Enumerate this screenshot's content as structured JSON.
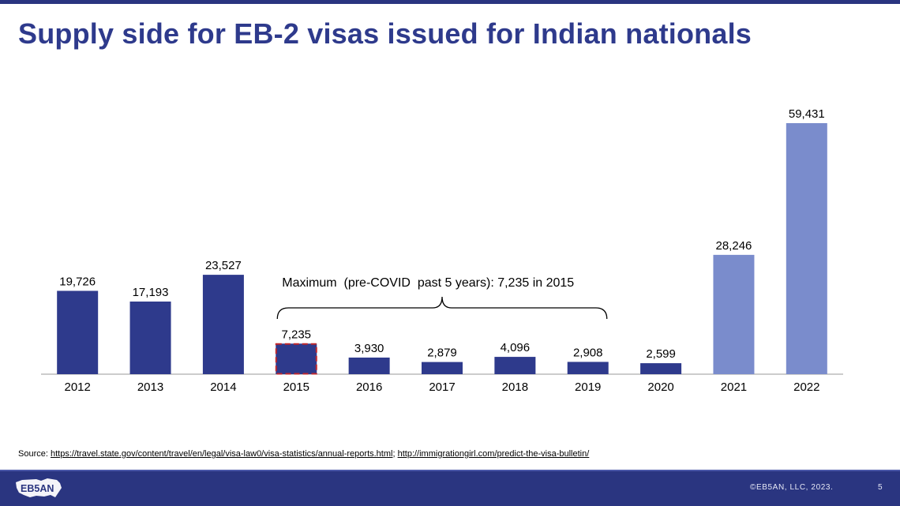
{
  "title": "Supply side for EB-2 visas issued for Indian nationals",
  "chart_data": {
    "type": "bar",
    "title": "Supply side for EB-2 visas issued for Indian nationals",
    "categories": [
      "2012",
      "2013",
      "2014",
      "2015",
      "2016",
      "2017",
      "2018",
      "2019",
      "2020",
      "2021",
      "2022"
    ],
    "values": [
      19726,
      17193,
      23527,
      7235,
      3930,
      2879,
      4096,
      2908,
      2599,
      28246,
      59431
    ],
    "value_labels": [
      "19,726",
      "17,193",
      "23,527",
      "7,235",
      "3,930",
      "2,879",
      "4,096",
      "2,908",
      "2,599",
      "28,246",
      "59,431"
    ],
    "bar_colors": [
      "#2e3a8c",
      "#2e3a8c",
      "#2e3a8c",
      "#2e3a8c",
      "#2e3a8c",
      "#2e3a8c",
      "#2e3a8c",
      "#2e3a8c",
      "#2e3a8c",
      "#7a8ccc",
      "#7a8ccc"
    ],
    "highlight_category": "2015",
    "highlight_color": "#c0282d",
    "ylim": [
      0,
      59431
    ],
    "xlabel": "",
    "ylabel": "",
    "grid": false,
    "annotation": {
      "text": "Maximum  (pre-COVID  past 5 years): 7,235 in 2015",
      "span": [
        "2015",
        "2019"
      ]
    }
  },
  "source": {
    "label": "Source:",
    "link1": "https://travel.state.gov/content/travel/en/legal/visa-law0/visa-statistics/annual-reports.html",
    "separator": ";",
    "link2": "http://immigrationgirl.com/predict-the-visa-bulletin/"
  },
  "footer": {
    "logo_text": "EB5AN",
    "copyright": "©EB5AN,  LLC, 2023.",
    "page_number": "5"
  },
  "colors": {
    "brand_navy": "#2a3580",
    "title_blue": "#2e3a8c",
    "bar_dark": "#2e3a8c",
    "bar_light": "#7a8ccc",
    "highlight_red": "#c0282d"
  }
}
